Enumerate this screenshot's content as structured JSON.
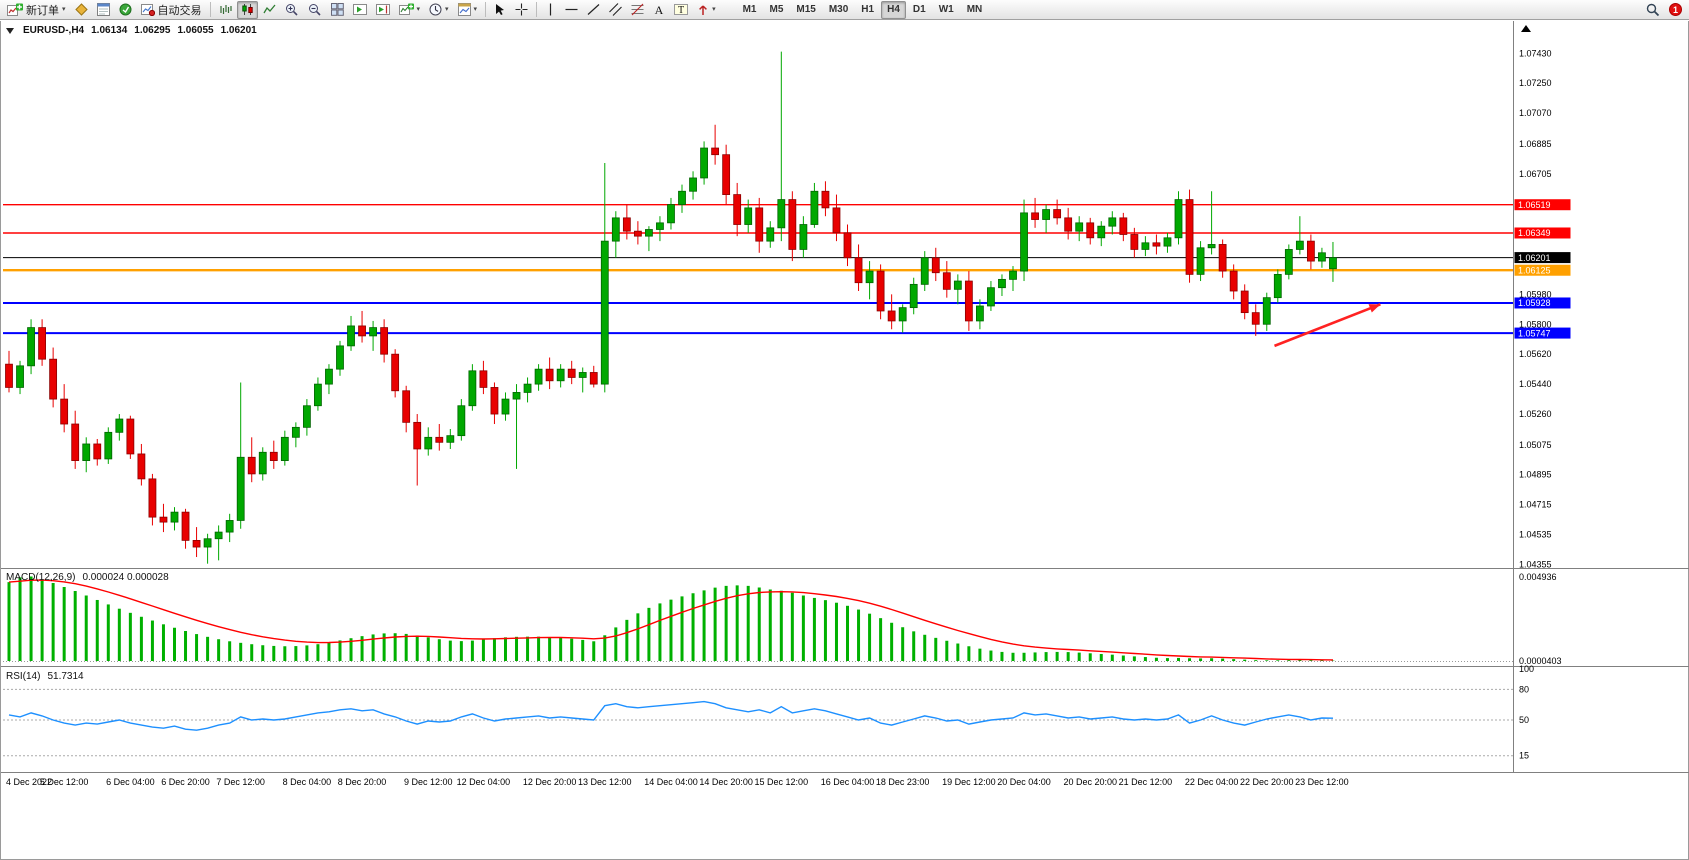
{
  "toolbar": {
    "new_order_label": "新订单",
    "auto_trading_label": "自动交易",
    "caret_glyph": "▾",
    "timeframes": [
      "M1",
      "M5",
      "M15",
      "M30",
      "H1",
      "H4",
      "D1",
      "W1",
      "MN"
    ],
    "active_timeframe": "H4",
    "notification_count": "1"
  },
  "chart": {
    "header": {
      "symbol_period": "EURUSD-,H4",
      "open": "1.06134",
      "high": "1.06295",
      "low": "1.06055",
      "close": "1.06201"
    }
  },
  "colors": {
    "candle_up": "#00A800",
    "candle_up_border": "#006400",
    "candle_down": "#E80000",
    "candle_down_border": "#8B0000",
    "level_red": "#FF0000",
    "level_orange": "#FFA000",
    "level_blue": "#0000FF",
    "bid_black": "#000000",
    "macd_hist": "#00B000",
    "macd_signal": "#FF0000",
    "rsi_line": "#1E90FF",
    "axis_text": "#000000",
    "pane_border": "#808080",
    "arrow_red": "#FF2222"
  },
  "chart_data": {
    "type": "candlestick",
    "symbol": "EURUSD",
    "period": "H4",
    "main": {
      "ylim": [
        1.0434,
        1.076
      ],
      "price_ticks": [
        "1.07430",
        "1.07250",
        "1.07070",
        "1.06885",
        "1.06705",
        "1.05980",
        "1.05800",
        "1.05620",
        "1.05440",
        "1.05260",
        "1.05075",
        "1.04895",
        "1.04715",
        "1.04535",
        "1.04355"
      ],
      "levels": [
        {
          "price": 1.06519,
          "label": "1.06519",
          "color": "#FF0000",
          "width": 1.4,
          "text": "#FFFFFF"
        },
        {
          "price": 1.06349,
          "label": "1.06349",
          "color": "#FF0000",
          "width": 1.4,
          "text": "#FFFFFF"
        },
        {
          "price": 1.06201,
          "label": "1.06201",
          "color": "#000000",
          "width": 1.0,
          "text": "#FFFFFF"
        },
        {
          "price": 1.06125,
          "label": "1.06125",
          "color": "#FFA000",
          "width": 2.4,
          "text": "#FFFFFF"
        },
        {
          "price": 1.05928,
          "label": "1.05928",
          "color": "#0000FF",
          "width": 2.0,
          "text": "#FFFFFF"
        },
        {
          "price": 1.05747,
          "label": "1.05747",
          "color": "#0000FF",
          "width": 2.0,
          "text": "#FFFFFF"
        }
      ],
      "arrow": {
        "b1": 114.7,
        "p1": 1.0567,
        "b2": 124.3,
        "p2": 1.0592
      },
      "candles": [
        [
          1.0556,
          1.0564,
          1.0539,
          1.0542
        ],
        [
          1.0542,
          1.0558,
          1.0538,
          1.0555
        ],
        [
          1.0555,
          1.0583,
          1.055,
          1.0578
        ],
        [
          1.0578,
          1.0583,
          1.0555,
          1.0559
        ],
        [
          1.0559,
          1.0566,
          1.053,
          1.0535
        ],
        [
          1.0535,
          1.0544,
          1.0515,
          1.052
        ],
        [
          1.052,
          1.0528,
          1.0493,
          1.0498
        ],
        [
          1.0498,
          1.0512,
          1.0491,
          1.0508
        ],
        [
          1.0508,
          1.0511,
          1.0495,
          1.0499
        ],
        [
          1.0499,
          1.0518,
          1.0496,
          1.0515
        ],
        [
          1.0515,
          1.0526,
          1.051,
          1.0523
        ],
        [
          1.0523,
          1.0525,
          1.0499,
          1.0502
        ],
        [
          1.0502,
          1.0508,
          1.0483,
          1.0487
        ],
        [
          1.0487,
          1.049,
          1.0459,
          1.0464
        ],
        [
          1.0464,
          1.0472,
          1.0455,
          1.0461
        ],
        [
          1.0461,
          1.047,
          1.0456,
          1.0467
        ],
        [
          1.0467,
          1.0469,
          1.0445,
          1.045
        ],
        [
          1.045,
          1.0458,
          1.044,
          1.0446
        ],
        [
          1.0446,
          1.0454,
          1.0436,
          1.0451
        ],
        [
          1.0451,
          1.0459,
          1.0438,
          1.0455
        ],
        [
          1.0455,
          1.0466,
          1.0449,
          1.0462
        ],
        [
          1.0462,
          1.0545,
          1.0457,
          1.05
        ],
        [
          1.05,
          1.0512,
          1.0485,
          1.049
        ],
        [
          1.049,
          1.0506,
          1.0486,
          1.0503
        ],
        [
          1.0503,
          1.051,
          1.0493,
          1.0498
        ],
        [
          1.0498,
          1.0516,
          1.0495,
          1.0512
        ],
        [
          1.0512,
          1.0521,
          1.0506,
          1.0518
        ],
        [
          1.0518,
          1.0535,
          1.0513,
          1.0531
        ],
        [
          1.0531,
          1.0548,
          1.0528,
          1.0544
        ],
        [
          1.0544,
          1.0556,
          1.0538,
          1.0553
        ],
        [
          1.0553,
          1.057,
          1.0549,
          1.0567
        ],
        [
          1.0567,
          1.0585,
          1.0564,
          1.0579
        ],
        [
          1.0579,
          1.0588,
          1.0569,
          1.0573
        ],
        [
          1.0573,
          1.0582,
          1.0564,
          1.0578
        ],
        [
          1.0578,
          1.0583,
          1.0557,
          1.0562
        ],
        [
          1.0562,
          1.0565,
          1.0536,
          1.054
        ],
        [
          1.054,
          1.0543,
          1.0515,
          1.0521
        ],
        [
          1.0521,
          1.0526,
          1.0483,
          1.0505
        ],
        [
          1.0505,
          1.0518,
          1.0501,
          1.0512
        ],
        [
          1.0512,
          1.052,
          1.0504,
          1.0509
        ],
        [
          1.0509,
          1.0517,
          1.0505,
          1.0513
        ],
        [
          1.0513,
          1.0535,
          1.051,
          1.0531
        ],
        [
          1.0531,
          1.0556,
          1.0528,
          1.0552
        ],
        [
          1.0552,
          1.0558,
          1.0538,
          1.0542
        ],
        [
          1.0542,
          1.0545,
          1.052,
          1.0526
        ],
        [
          1.0526,
          1.0539,
          1.0522,
          1.0535
        ],
        [
          1.0535,
          1.0544,
          1.0493,
          1.0539
        ],
        [
          1.0539,
          1.0548,
          1.0533,
          1.0544
        ],
        [
          1.0544,
          1.0556,
          1.054,
          1.0553
        ],
        [
          1.0553,
          1.056,
          1.0541,
          1.0546
        ],
        [
          1.0546,
          1.0556,
          1.0542,
          1.0553
        ],
        [
          1.0553,
          1.0558,
          1.0544,
          1.0548
        ],
        [
          1.0548,
          1.0554,
          1.0539,
          1.0551
        ],
        [
          1.0551,
          1.0555,
          1.0542,
          1.0544
        ],
        [
          1.0544,
          1.0677,
          1.0539,
          1.063
        ],
        [
          1.063,
          1.0648,
          1.062,
          1.0644
        ],
        [
          1.0644,
          1.0652,
          1.0631,
          1.0636
        ],
        [
          1.0636,
          1.0642,
          1.0628,
          1.0633
        ],
        [
          1.0633,
          1.0639,
          1.0624,
          1.0637
        ],
        [
          1.0637,
          1.0645,
          1.063,
          1.0641
        ],
        [
          1.0641,
          1.0656,
          1.0637,
          1.0652
        ],
        [
          1.0652,
          1.0664,
          1.0647,
          1.066
        ],
        [
          1.066,
          1.0672,
          1.0655,
          1.0668
        ],
        [
          1.0668,
          1.069,
          1.0664,
          1.0686
        ],
        [
          1.0686,
          1.07,
          1.0676,
          1.0682
        ],
        [
          1.0682,
          1.0688,
          1.0652,
          1.0658
        ],
        [
          1.0658,
          1.0665,
          1.0633,
          1.064
        ],
        [
          1.064,
          1.0655,
          1.0635,
          1.065
        ],
        [
          1.065,
          1.0656,
          1.0623,
          1.063
        ],
        [
          1.063,
          1.0642,
          1.0626,
          1.0638
        ],
        [
          1.0638,
          1.0744,
          1.063,
          1.0655
        ],
        [
          1.0655,
          1.066,
          1.0618,
          1.0625
        ],
        [
          1.0625,
          1.0645,
          1.062,
          1.064
        ],
        [
          1.064,
          1.0665,
          1.0638,
          1.066
        ],
        [
          1.066,
          1.0666,
          1.0645,
          1.065
        ],
        [
          1.065,
          1.0658,
          1.063,
          1.0635
        ],
        [
          1.0635,
          1.064,
          1.0615,
          1.062
        ],
        [
          1.062,
          1.0628,
          1.06,
          1.0605
        ],
        [
          1.0605,
          1.0618,
          1.0595,
          1.0612
        ],
        [
          1.0612,
          1.0616,
          1.0583,
          1.0588
        ],
        [
          1.0588,
          1.0598,
          1.0577,
          1.0582
        ],
        [
          1.0582,
          1.0592,
          1.0575,
          1.059
        ],
        [
          1.059,
          1.0608,
          1.0586,
          1.0604
        ],
        [
          1.0604,
          1.0624,
          1.06,
          1.062
        ],
        [
          1.062,
          1.0626,
          1.0606,
          1.0611
        ],
        [
          1.0611,
          1.0618,
          1.0596,
          1.0601
        ],
        [
          1.0601,
          1.061,
          1.0592,
          1.0606
        ],
        [
          1.0606,
          1.0612,
          1.0576,
          1.0582
        ],
        [
          1.0582,
          1.0595,
          1.0577,
          1.0591
        ],
        [
          1.0591,
          1.0606,
          1.0588,
          1.0602
        ],
        [
          1.0602,
          1.061,
          1.0597,
          1.0607
        ],
        [
          1.0607,
          1.0615,
          1.06,
          1.0612
        ],
        [
          1.0612,
          1.0655,
          1.0606,
          1.0647
        ],
        [
          1.0647,
          1.0656,
          1.0638,
          1.0643
        ],
        [
          1.0643,
          1.0652,
          1.0635,
          1.0649
        ],
        [
          1.0649,
          1.0655,
          1.064,
          1.0644
        ],
        [
          1.0644,
          1.065,
          1.0631,
          1.0636
        ],
        [
          1.0636,
          1.0645,
          1.063,
          1.0641
        ],
        [
          1.0641,
          1.0644,
          1.0628,
          1.0632
        ],
        [
          1.0632,
          1.0642,
          1.0627,
          1.0639
        ],
        [
          1.0639,
          1.0648,
          1.0634,
          1.0644
        ],
        [
          1.0644,
          1.0647,
          1.063,
          1.0634
        ],
        [
          1.0634,
          1.0638,
          1.062,
          1.0625
        ],
        [
          1.0625,
          1.0633,
          1.0621,
          1.0629
        ],
        [
          1.0629,
          1.0634,
          1.0622,
          1.0627
        ],
        [
          1.0627,
          1.0635,
          1.0623,
          1.0632
        ],
        [
          1.0632,
          1.066,
          1.0628,
          1.0655
        ],
        [
          1.0655,
          1.0661,
          1.0605,
          1.061
        ],
        [
          1.061,
          1.063,
          1.0606,
          1.0626
        ],
        [
          1.0626,
          1.066,
          1.0622,
          1.0628
        ],
        [
          1.0628,
          1.0631,
          1.0608,
          1.0612
        ],
        [
          1.0612,
          1.0616,
          1.0595,
          1.06
        ],
        [
          1.06,
          1.0604,
          1.0583,
          1.0587
        ],
        [
          1.0587,
          1.0592,
          1.0573,
          1.058
        ],
        [
          1.058,
          1.0599,
          1.0576,
          1.0596
        ],
        [
          1.0596,
          1.0613,
          1.0593,
          1.061
        ],
        [
          1.061,
          1.0628,
          1.0607,
          1.0625
        ],
        [
          1.0625,
          1.0645,
          1.0622,
          1.063
        ],
        [
          1.063,
          1.0634,
          1.0613,
          1.0618
        ],
        [
          1.0618,
          1.0626,
          1.0614,
          1.0623
        ],
        [
          1.06134,
          1.06295,
          1.06055,
          1.06201
        ]
      ]
    },
    "macd": {
      "label": "MACD(12,26,9)",
      "values_text": "0.000024 0.000028",
      "max_label": "0.004936",
      "min_label": "0.0000403",
      "scale_max": 0.0049,
      "signal_period": 9,
      "hist": [
        0.0046,
        0.00488,
        0.00493,
        0.00476,
        0.00455,
        0.00432,
        0.00408,
        0.00382,
        0.00356,
        0.0033,
        0.00305,
        0.00281,
        0.00258,
        0.00236,
        0.00214,
        0.00194,
        0.00175,
        0.00157,
        0.00141,
        0.00127,
        0.00115,
        0.00106,
        0.00098,
        0.00092,
        0.00088,
        0.00086,
        0.00087,
        0.00091,
        0.00098,
        0.00108,
        0.0012,
        0.00133,
        0.00145,
        0.00155,
        0.00161,
        0.00162,
        0.00158,
        0.00149,
        0.00138,
        0.00127,
        0.00119,
        0.00116,
        0.00119,
        0.00126,
        0.00133,
        0.00138,
        0.00141,
        0.00142,
        0.00142,
        0.0014,
        0.00136,
        0.0013,
        0.00123,
        0.00115,
        0.0015,
        0.00196,
        0.0024,
        0.00278,
        0.0031,
        0.00336,
        0.00358,
        0.00377,
        0.00395,
        0.00412,
        0.00428,
        0.00438,
        0.00441,
        0.00438,
        0.00429,
        0.00417,
        0.0041,
        0.00398,
        0.00382,
        0.00368,
        0.00355,
        0.0034,
        0.00322,
        0.003,
        0.00276,
        0.0025,
        0.00223,
        0.00197,
        0.00173,
        0.00153,
        0.00135,
        0.00118,
        0.00102,
        0.00086,
        0.00072,
        0.00061,
        0.00053,
        0.00048,
        0.00048,
        0.0005,
        0.00052,
        0.00053,
        0.00052,
        0.00049,
        0.00045,
        0.00041,
        0.00037,
        0.00032,
        0.00027,
        0.00023,
        0.00019,
        0.00017,
        0.00018,
        0.00016,
        0.00015,
        0.00016,
        0.00014,
        0.00011,
        8e-05,
        5e-05,
        4e-05,
        4e-05,
        5e-05,
        6e-05,
        5e-05,
        4e-05,
        2.4e-05
      ]
    },
    "rsi": {
      "label": "RSI(14)",
      "value_text": "51.7314",
      "scale_labels": [
        "100",
        "80",
        "50",
        "15"
      ],
      "scale_values": [
        100,
        80,
        50,
        15
      ],
      "levels": [
        80,
        50,
        15
      ],
      "values": [
        55,
        53,
        57,
        54,
        50,
        47,
        45,
        47,
        46,
        48,
        50,
        47,
        45,
        43,
        42,
        44,
        41,
        40,
        42,
        45,
        47,
        53,
        50,
        51,
        50,
        51,
        53,
        55,
        57,
        58,
        60,
        61,
        59,
        60,
        56,
        53,
        49,
        46,
        49,
        48,
        49,
        53,
        56,
        52,
        49,
        51,
        52,
        53,
        54,
        52,
        53,
        52,
        51,
        50,
        64,
        66,
        63,
        62,
        63,
        64,
        65,
        66,
        67,
        68,
        66,
        62,
        60,
        58,
        60,
        57,
        63,
        57,
        59,
        61,
        59,
        56,
        53,
        50,
        52,
        47,
        45,
        48,
        51,
        54,
        52,
        49,
        50,
        46,
        48,
        50,
        51,
        52,
        57,
        55,
        56,
        54,
        52,
        53,
        51,
        52,
        53,
        51,
        50,
        51,
        50,
        51,
        55,
        47,
        50,
        54,
        50,
        47,
        45,
        48,
        51,
        53,
        55,
        53,
        50,
        52,
        51.73
      ]
    },
    "time_labels": [
      {
        "text": "4 Dec 2022",
        "bar": 0
      },
      {
        "text": "5 Dec 12:00",
        "bar": 5
      },
      {
        "text": "6 Dec 04:00",
        "bar": 11
      },
      {
        "text": "6 Dec 20:00",
        "bar": 16
      },
      {
        "text": "7 Dec 12:00",
        "bar": 21
      },
      {
        "text": "8 Dec 04:00",
        "bar": 27
      },
      {
        "text": "8 Dec 20:00",
        "bar": 32
      },
      {
        "text": "9 Dec 12:00",
        "bar": 38
      },
      {
        "text": "12 Dec 04:00",
        "bar": 43
      },
      {
        "text": "12 Dec 20:00",
        "bar": 49
      },
      {
        "text": "13 Dec 12:00",
        "bar": 54
      },
      {
        "text": "14 Dec 04:00",
        "bar": 60
      },
      {
        "text": "14 Dec 20:00",
        "bar": 65
      },
      {
        "text": "15 Dec 12:00",
        "bar": 70
      },
      {
        "text": "16 Dec 04:00",
        "bar": 76
      },
      {
        "text": "18 Dec 23:00",
        "bar": 81
      },
      {
        "text": "19 Dec 12:00",
        "bar": 87
      },
      {
        "text": "20 Dec 04:00",
        "bar": 92
      },
      {
        "text": "20 Dec 20:00",
        "bar": 98
      },
      {
        "text": "21 Dec 12:00",
        "bar": 103
      },
      {
        "text": "22 Dec 04:00",
        "bar": 109
      },
      {
        "text": "22 Dec 20:00",
        "bar": 114
      },
      {
        "text": "23 Dec 12:00",
        "bar": 119
      }
    ]
  }
}
